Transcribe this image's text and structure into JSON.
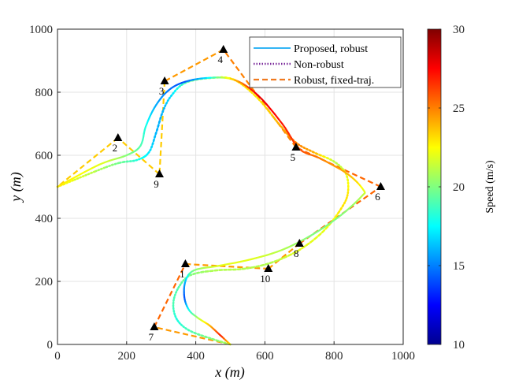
{
  "chart_data": {
    "type": "line",
    "xlabel": "x (m)",
    "ylabel": "y (m)",
    "xlim": [
      0,
      1000
    ],
    "ylim": [
      0,
      1000
    ],
    "xticks": [
      "0",
      "200",
      "400",
      "600",
      "800",
      "1000"
    ],
    "yticks": [
      "0",
      "200",
      "400",
      "600",
      "800",
      "1000"
    ],
    "grid": true,
    "legend_position": "top-right",
    "colorbar": {
      "label": "Speed (m/s)",
      "range": [
        10,
        30
      ],
      "ticks": [
        "10",
        "15",
        "20",
        "25",
        "30"
      ]
    },
    "waypoints": [
      {
        "label": "1",
        "x": 370,
        "y": 255
      },
      {
        "label": "2",
        "x": 175,
        "y": 655
      },
      {
        "label": "3",
        "x": 310,
        "y": 835
      },
      {
        "label": "4",
        "x": 480,
        "y": 935
      },
      {
        "label": "5",
        "x": 690,
        "y": 625
      },
      {
        "label": "6",
        "x": 935,
        "y": 500
      },
      {
        "label": "7",
        "x": 280,
        "y": 55
      },
      {
        "label": "8",
        "x": 700,
        "y": 320
      },
      {
        "label": "9",
        "x": 295,
        "y": 540
      },
      {
        "label": "10",
        "x": 610,
        "y": 240
      }
    ],
    "series": [
      {
        "name": "Proposed, robust",
        "style": "solid",
        "colored_by_speed": true,
        "points": [
          [
            500,
            0,
            22
          ],
          [
            470,
            30,
            27
          ],
          [
            440,
            60,
            24
          ],
          [
            405,
            85,
            21
          ],
          [
            380,
            110,
            18
          ],
          [
            367,
            150,
            14
          ],
          [
            370,
            200,
            16
          ],
          [
            395,
            235,
            20
          ],
          [
            470,
            250,
            22
          ],
          [
            560,
            270,
            22
          ],
          [
            650,
            300,
            21
          ],
          [
            740,
            350,
            20
          ],
          [
            820,
            410,
            20
          ],
          [
            880,
            470,
            21
          ],
          [
            885,
            490,
            22
          ],
          [
            840,
            540,
            24
          ],
          [
            760,
            590,
            25
          ],
          [
            700,
            620,
            26
          ],
          [
            650,
            700,
            27
          ],
          [
            580,
            790,
            28
          ],
          [
            510,
            840,
            24
          ],
          [
            430,
            845,
            17
          ],
          [
            360,
            830,
            14
          ],
          [
            315,
            800,
            15
          ],
          [
            280,
            750,
            16
          ],
          [
            255,
            690,
            18
          ],
          [
            240,
            630,
            19
          ],
          [
            200,
            600,
            20
          ],
          [
            120,
            570,
            22
          ],
          [
            0,
            500,
            23
          ]
        ]
      },
      {
        "name": "Non-robust",
        "style": "dotted",
        "colored_by_speed": true,
        "points": [
          [
            500,
            0,
            21
          ],
          [
            440,
            20,
            20
          ],
          [
            380,
            45,
            19
          ],
          [
            345,
            80,
            18
          ],
          [
            335,
            130,
            19
          ],
          [
            350,
            180,
            19
          ],
          [
            385,
            220,
            20
          ],
          [
            460,
            235,
            21
          ],
          [
            540,
            240,
            21
          ],
          [
            620,
            260,
            21
          ],
          [
            700,
            300,
            22
          ],
          [
            770,
            360,
            22
          ],
          [
            820,
            430,
            23
          ],
          [
            840,
            480,
            23
          ],
          [
            835,
            540,
            22
          ],
          [
            800,
            580,
            21
          ],
          [
            740,
            610,
            24
          ],
          [
            690,
            640,
            25
          ],
          [
            640,
            700,
            24
          ],
          [
            580,
            780,
            23
          ],
          [
            510,
            840,
            23
          ],
          [
            440,
            845,
            21
          ],
          [
            370,
            830,
            19
          ],
          [
            330,
            790,
            17
          ],
          [
            305,
            740,
            16
          ],
          [
            285,
            670,
            16
          ],
          [
            265,
            610,
            17
          ],
          [
            230,
            585,
            18
          ],
          [
            160,
            570,
            20
          ],
          [
            0,
            500,
            23
          ]
        ]
      },
      {
        "name": "Robust, fixed-traj.",
        "style": "dashed",
        "colored_by_speed": true,
        "points": [
          [
            500,
            0,
            23
          ],
          [
            280,
            55,
            26
          ],
          [
            370,
            255,
            25
          ],
          [
            610,
            240,
            24
          ],
          [
            700,
            320,
            25
          ],
          [
            935,
            500,
            26
          ],
          [
            690,
            625,
            25
          ],
          [
            480,
            935,
            25
          ],
          [
            310,
            835,
            24
          ],
          [
            295,
            540,
            23
          ],
          [
            175,
            655,
            24
          ],
          [
            0,
            500,
            23
          ]
        ]
      }
    ]
  }
}
